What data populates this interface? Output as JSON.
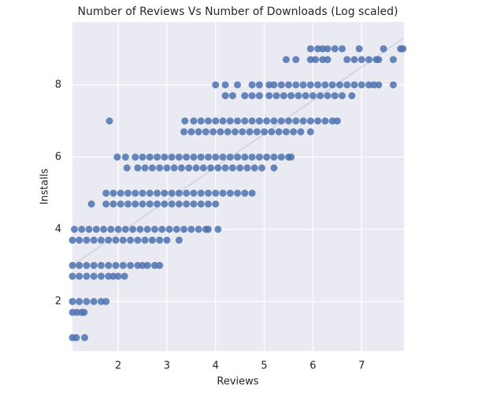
{
  "chart_data": {
    "type": "scatter",
    "title": "Number of Reviews Vs Number of Downloads (Log scaled)",
    "x_label": "Reviews",
    "y_label": "Installs",
    "color": "#4c72b0",
    "xlim": [
      1.06,
      7.87
    ],
    "ylim": [
      0.63,
      9.74
    ],
    "xticks": [
      2,
      3,
      4,
      5,
      6,
      7
    ],
    "yticks": [
      2,
      4,
      6,
      8
    ],
    "grid": true,
    "groups": [
      {
        "y": 1.0,
        "x": [
          1.06,
          1.14,
          1.31
        ]
      },
      {
        "y": 1.7,
        "x": [
          1.06,
          1.15,
          1.25,
          1.3
        ]
      },
      {
        "y": 2.0,
        "x": [
          1.06,
          1.2,
          1.35,
          1.5,
          1.65,
          1.75
        ]
      },
      {
        "y": 2.7,
        "x": [
          1.06,
          1.2,
          1.35,
          1.5,
          1.65,
          1.8,
          1.9,
          2.0,
          2.13
        ]
      },
      {
        "y": 3.0,
        "x": [
          1.06,
          1.2,
          1.35,
          1.5,
          1.65,
          1.8,
          1.95,
          2.1,
          2.25,
          2.4,
          2.5,
          2.6,
          2.75,
          2.85
        ]
      },
      {
        "y": 3.7,
        "x": [
          1.06,
          1.2,
          1.35,
          1.5,
          1.65,
          1.8,
          1.95,
          2.1,
          2.25,
          2.4,
          2.55,
          2.7,
          2.85,
          3.0,
          3.25
        ]
      },
      {
        "y": 4.0,
        "x": [
          1.1,
          1.25,
          1.4,
          1.55,
          1.7,
          1.85,
          2.0,
          2.15,
          2.3,
          2.45,
          2.6,
          2.75,
          2.9,
          3.05,
          3.2,
          3.35,
          3.5,
          3.65,
          3.8,
          3.85,
          4.05
        ]
      },
      {
        "y": 4.7,
        "x": [
          1.45,
          1.75,
          1.9,
          2.05,
          2.2,
          2.35,
          2.5,
          2.65,
          2.8,
          2.95,
          3.1,
          3.25,
          3.4,
          3.55,
          3.7,
          3.85,
          4.0
        ]
      },
      {
        "y": 5.0,
        "x": [
          1.75,
          1.9,
          2.05,
          2.2,
          2.35,
          2.5,
          2.65,
          2.8,
          2.95,
          3.1,
          3.25,
          3.4,
          3.55,
          3.7,
          3.85,
          4.0,
          4.15,
          4.3,
          4.45,
          4.6,
          4.75
        ]
      },
      {
        "y": 5.7,
        "x": [
          2.18,
          2.4,
          2.55,
          2.7,
          2.85,
          3.0,
          3.15,
          3.3,
          3.45,
          3.6,
          3.75,
          3.9,
          4.05,
          4.2,
          4.35,
          4.5,
          4.65,
          4.8,
          4.95,
          5.2
        ]
      },
      {
        "y": 6.0,
        "x": [
          1.98,
          2.15,
          2.35,
          2.5,
          2.65,
          2.8,
          2.95,
          3.1,
          3.25,
          3.4,
          3.55,
          3.7,
          3.85,
          4.0,
          4.15,
          4.3,
          4.45,
          4.6,
          4.75,
          4.9,
          5.05,
          5.2,
          5.35,
          5.5,
          5.55
        ]
      },
      {
        "y": 6.7,
        "x": [
          3.35,
          3.5,
          3.65,
          3.8,
          3.95,
          4.1,
          4.25,
          4.4,
          4.55,
          4.7,
          4.85,
          5.0,
          5.15,
          5.3,
          5.45,
          5.6,
          5.75,
          5.95
        ]
      },
      {
        "y": 7.0,
        "x": [
          1.82,
          3.37,
          3.55,
          3.7,
          3.85,
          4.0,
          4.15,
          4.3,
          4.45,
          4.6,
          4.75,
          4.9,
          5.05,
          5.2,
          5.35,
          5.5,
          5.65,
          5.8,
          5.95,
          6.1,
          6.25,
          6.4,
          6.5
        ]
      },
      {
        "y": 7.7,
        "x": [
          4.2,
          4.35,
          4.6,
          4.75,
          4.9,
          5.1,
          5.25,
          5.4,
          5.55,
          5.7,
          5.85,
          6.0,
          6.15,
          6.3,
          6.45,
          6.6,
          6.8
        ]
      },
      {
        "y": 8.0,
        "x": [
          4.0,
          4.2,
          4.45,
          4.75,
          4.9,
          5.1,
          5.2,
          5.35,
          5.5,
          5.65,
          5.8,
          5.95,
          6.1,
          6.25,
          6.4,
          6.55,
          6.7,
          6.85,
          7.0,
          7.15,
          7.25,
          7.35,
          7.65
        ]
      },
      {
        "y": 8.7,
        "x": [
          5.45,
          5.65,
          5.95,
          6.05,
          6.2,
          6.3,
          6.7,
          6.85,
          7.0,
          7.15,
          7.3,
          7.35,
          7.65
        ]
      },
      {
        "y": 9.0,
        "x": [
          5.95,
          6.1,
          6.2,
          6.3,
          6.45,
          6.6,
          6.95,
          7.45,
          7.8,
          7.85
        ]
      }
    ],
    "fit_line": {
      "x": [
        1.06,
        7.87
      ],
      "y": [
        3.0,
        9.3
      ]
    }
  }
}
